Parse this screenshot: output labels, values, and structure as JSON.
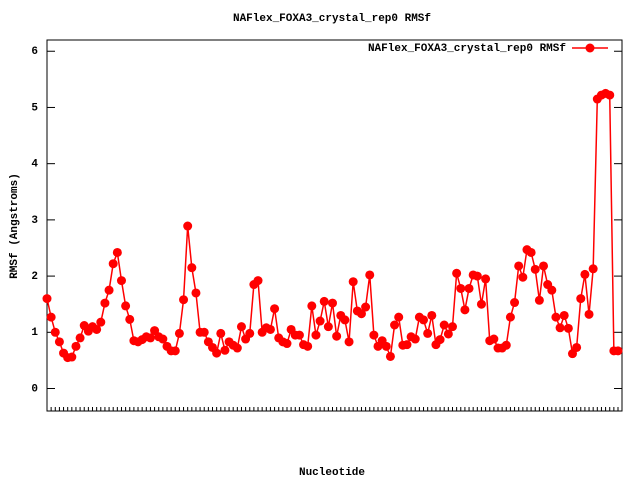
{
  "chart_data": {
    "type": "line",
    "title": "NAFlex_FOXA3_crystal_rep0 RMSf",
    "xlabel": "Nucleotide",
    "ylabel": "RMSf (Angstroms)",
    "ylim": [
      -0.4,
      6.2
    ],
    "yticks": [
      0,
      1,
      2,
      3,
      4,
      5,
      6
    ],
    "legend": "top-right",
    "series": [
      {
        "name": "NAFlex_FOXA3_crystal_rep0 RMSf",
        "color": "#ff0000",
        "values": [
          1.6,
          1.27,
          1.0,
          0.83,
          0.63,
          0.55,
          0.56,
          0.75,
          0.9,
          1.12,
          1.02,
          1.1,
          1.05,
          1.18,
          1.52,
          1.75,
          2.22,
          2.42,
          1.92,
          1.47,
          1.23,
          0.85,
          0.83,
          0.87,
          0.92,
          0.9,
          1.03,
          0.92,
          0.88,
          0.75,
          0.67,
          0.67,
          0.98,
          1.58,
          2.89,
          2.15,
          1.7,
          1.0,
          1.0,
          0.83,
          0.73,
          0.63,
          0.98,
          0.68,
          0.83,
          0.77,
          0.72,
          1.1,
          0.88,
          0.98,
          1.85,
          1.92,
          1.0,
          1.08,
          1.05,
          1.42,
          0.9,
          0.83,
          0.8,
          1.05,
          0.95,
          0.95,
          0.78,
          0.75,
          1.47,
          0.95,
          1.2,
          1.55,
          1.1,
          1.52,
          0.93,
          1.3,
          1.22,
          0.83,
          1.9,
          1.38,
          1.33,
          1.45,
          2.02,
          0.95,
          0.75,
          0.85,
          0.75,
          0.57,
          1.13,
          1.27,
          0.77,
          0.78,
          0.92,
          0.88,
          1.27,
          1.22,
          0.98,
          1.3,
          0.78,
          0.87,
          1.13,
          0.97,
          1.1,
          2.05,
          1.78,
          1.4,
          1.78,
          2.02,
          2.0,
          1.5,
          1.95,
          0.85,
          0.88,
          0.72,
          0.72,
          0.77,
          1.27,
          1.53,
          2.18,
          1.98,
          2.47,
          2.42,
          2.12,
          1.57,
          2.18,
          1.85,
          1.75,
          1.27,
          1.08,
          1.3,
          1.07,
          0.62,
          0.73,
          1.6,
          2.03,
          1.32,
          2.13,
          5.15,
          5.22,
          5.25,
          5.22,
          0.67,
          0.67
        ]
      }
    ]
  }
}
